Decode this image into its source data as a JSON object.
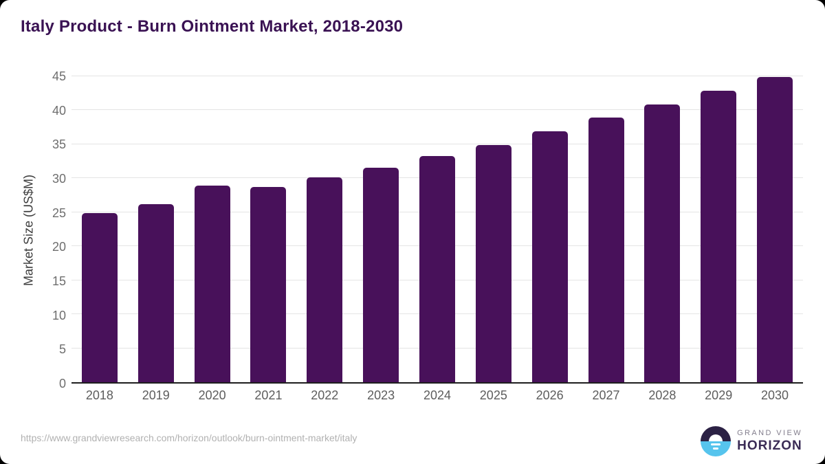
{
  "title": "Italy Product - Burn Ointment Market, 2018-2030",
  "chart_data": {
    "type": "bar",
    "title": "Italy Product - Burn Ointment Market, 2018-2030",
    "categories": [
      "2018",
      "2019",
      "2020",
      "2021",
      "2022",
      "2023",
      "2024",
      "2025",
      "2026",
      "2027",
      "2028",
      "2029",
      "2030"
    ],
    "values": [
      24.9,
      26.2,
      28.9,
      28.7,
      30.1,
      31.6,
      33.3,
      34.9,
      36.9,
      38.9,
      40.9,
      42.9,
      44.9
    ],
    "xlabel": "",
    "ylabel": "Market Size (US$M)",
    "ylim": [
      0,
      45
    ],
    "yticks": [
      0,
      5,
      10,
      15,
      20,
      25,
      30,
      35,
      40,
      45
    ],
    "grid": "horizontal",
    "legend": "none",
    "bar_color": "#48115A"
  },
  "footer": {
    "source_url": "https://www.grandviewresearch.com/horizon/outlook/burn-ointment-market/italy"
  },
  "logo": {
    "line1": "GRAND VIEW",
    "line2": "HORIZON"
  },
  "colors": {
    "card_background": "#FFFFFF",
    "page_background": "#000000",
    "title": "#3A1253",
    "bar": "#48115A",
    "gridline": "#E4E4E4",
    "axis_line": "#1E1E1E",
    "tick_label": "#6E6E6E",
    "logo_dark_half": "#2B2144",
    "logo_blue_half": "#56C4ED",
    "logo_text": "#3B2C56"
  }
}
